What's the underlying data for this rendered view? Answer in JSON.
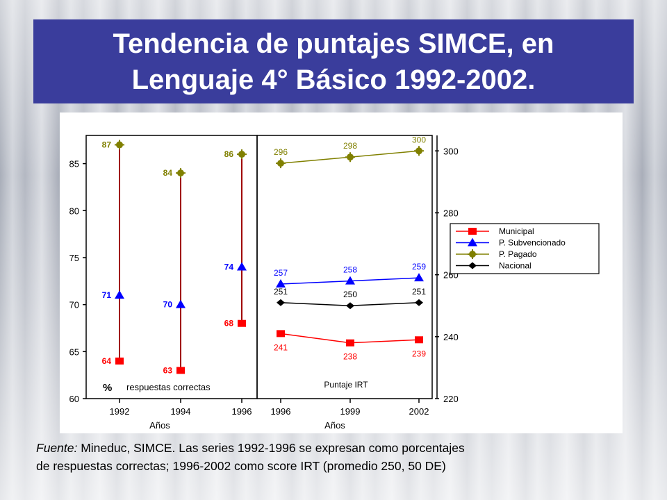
{
  "title": {
    "line1": "Tendencia de puntajes SIMCE, en",
    "line2": "Lenguaje 4° Básico 1992-2002."
  },
  "footnote": {
    "source_label": "Fuente:",
    "line1": " Mineduc, SIMCE. Las series 1992-1996 se expresan como porcentajes",
    "line2": "de respuestas correctas; 1996-2002 como score IRT (promedio 250, 50 DE)"
  },
  "colors": {
    "title_bg": "#3a3d9c",
    "municipal": "#ff0000",
    "subvencionado": "#0000ff",
    "pagado": "#808000",
    "nacional": "#000000",
    "range_line": "#a00000"
  },
  "chart_data": [
    {
      "type": "scatter",
      "panel": "left",
      "xlabel": "Años",
      "ylabel": "% respuestas correctas",
      "axis_label_symbol": "%",
      "axis_label_text": "respuestas correctas",
      "categories": [
        "1992",
        "1994",
        "1996"
      ],
      "ylim": [
        60,
        88
      ],
      "yticks": [
        "60",
        "65",
        "70",
        "75",
        "80",
        "85"
      ],
      "series": [
        {
          "name": "Municipal",
          "values": [
            64,
            63,
            68
          ]
        },
        {
          "name": "P. Subvencionado",
          "values": [
            71,
            70,
            74
          ]
        },
        {
          "name": "P. Pagado",
          "values": [
            87,
            84,
            86
          ]
        }
      ]
    },
    {
      "type": "line",
      "panel": "right",
      "xlabel": "Años",
      "inner_label": "Puntaje IRT",
      "categories": [
        "1996",
        "1999",
        "2002"
      ],
      "ylim": [
        220,
        305
      ],
      "yticks": [
        "220",
        "240",
        "260",
        "280",
        "300"
      ],
      "legend_position": "right",
      "series": [
        {
          "name": "Municipal",
          "values": [
            241,
            238,
            239
          ]
        },
        {
          "name": "P. Subvencionado",
          "values": [
            257,
            258,
            259
          ]
        },
        {
          "name": "P. Pagado",
          "values": [
            296,
            298,
            300
          ]
        },
        {
          "name": "Nacional",
          "values": [
            251,
            250,
            251
          ]
        }
      ]
    }
  ]
}
